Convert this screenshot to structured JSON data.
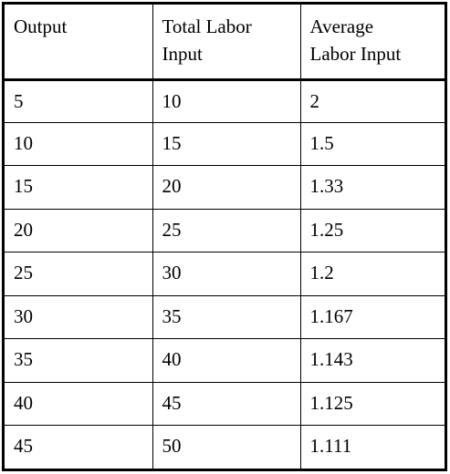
{
  "table": {
    "headers": [
      {
        "line1": "Output",
        "line2": ""
      },
      {
        "line1": "Total Labor",
        "line2": "Input"
      },
      {
        "line1": "Average",
        "line2": "Labor Input"
      }
    ],
    "rows": [
      [
        "5",
        "10",
        "2"
      ],
      [
        "10",
        "15",
        "1.5"
      ],
      [
        "15",
        "20",
        "1.33"
      ],
      [
        "20",
        "25",
        "1.25"
      ],
      [
        "25",
        "30",
        "1.2"
      ],
      [
        "30",
        "35",
        "1.167"
      ],
      [
        "35",
        "40",
        "1.143"
      ],
      [
        "40",
        "45",
        "1.125"
      ],
      [
        "45",
        "50",
        "1.111"
      ]
    ]
  }
}
